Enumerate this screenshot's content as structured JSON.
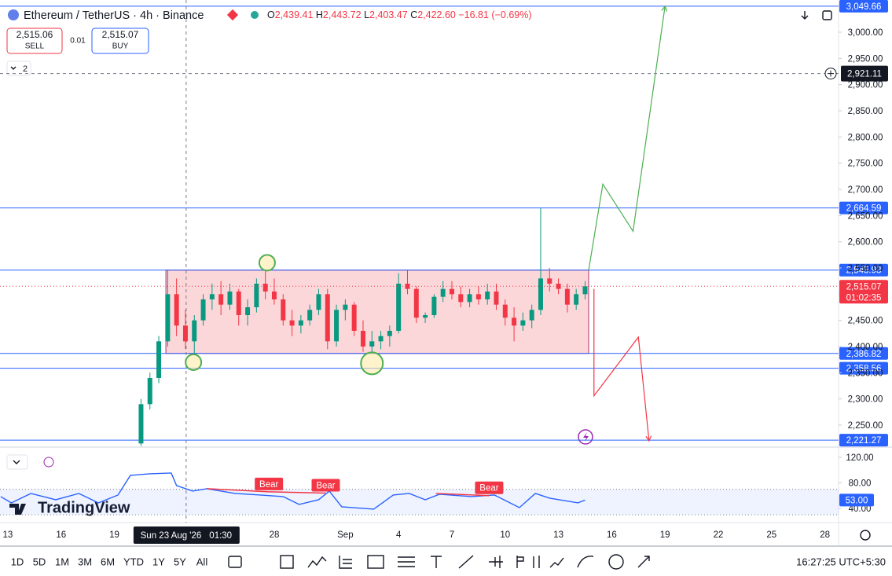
{
  "header": {
    "symbol": "Ethereum / TetherUS · 4h · Binance",
    "ohlc": [
      {
        "key": "O",
        "value": "2,439.41"
      },
      {
        "key": "H",
        "value": "2,443.72"
      },
      {
        "key": "L",
        "value": "2,403.47"
      },
      {
        "key": "C",
        "value": "2,422.60"
      }
    ],
    "change": "−16.81 (−0.69%)"
  },
  "trade": {
    "sell_price": "2,515.06",
    "sell_label": "SELL",
    "spread": "0.01",
    "buy_price": "2,515.07",
    "buy_label": "BUY"
  },
  "indicator_count": "2",
  "logo": "TradingView",
  "chart_data": {
    "type": "candlestick",
    "x": [
      7.5,
      8,
      8.5,
      9,
      9.5,
      10,
      10.5,
      11,
      11.5,
      12,
      12.5,
      13,
      13.5,
      14,
      14.5,
      15,
      15.5,
      16,
      16.5,
      17,
      17.5,
      18,
      18.5,
      19,
      19.5,
      20,
      20.5,
      21,
      21.5,
      22,
      22.5,
      23,
      23.5,
      24,
      24.5,
      25,
      25.5,
      26,
      26.5,
      27,
      27.5,
      28,
      28.5,
      29,
      29.5,
      30,
      30.5,
      31,
      31.5,
      32,
      32.5
    ],
    "open": [
      2215,
      2290,
      2340,
      2410,
      2500,
      2440,
      2410,
      2450,
      2490,
      2500,
      2480,
      2505,
      2460,
      2475,
      2520,
      2505,
      2490,
      2450,
      2440,
      2450,
      2470,
      2500,
      2410,
      2470,
      2480,
      2430,
      2400,
      2410,
      2420,
      2430,
      2520,
      2510,
      2455,
      2460,
      2495,
      2510,
      2500,
      2485,
      2500,
      2490,
      2505,
      2480,
      2455,
      2440,
      2450,
      2470,
      2530,
      2520,
      2510,
      2480,
      2500
    ],
    "high": [
      2300,
      2350,
      2420,
      2545,
      2530,
      2470,
      2460,
      2500,
      2520,
      2525,
      2520,
      2510,
      2490,
      2530,
      2545,
      2530,
      2500,
      2470,
      2460,
      2480,
      2510,
      2510,
      2480,
      2490,
      2485,
      2450,
      2430,
      2430,
      2440,
      2540,
      2545,
      2515,
      2465,
      2500,
      2525,
      2525,
      2515,
      2510,
      2515,
      2520,
      2520,
      2490,
      2475,
      2465,
      2480,
      2665,
      2550,
      2530,
      2520,
      2510,
      2525
    ],
    "low": [
      2210,
      2280,
      2330,
      2400,
      2420,
      2395,
      2387,
      2440,
      2470,
      2460,
      2470,
      2440,
      2440,
      2465,
      2490,
      2480,
      2440,
      2420,
      2425,
      2440,
      2460,
      2395,
      2400,
      2450,
      2420,
      2390,
      2387,
      2395,
      2400,
      2425,
      2500,
      2445,
      2445,
      2455,
      2485,
      2490,
      2475,
      2475,
      2480,
      2480,
      2470,
      2440,
      2410,
      2430,
      2435,
      2460,
      2505,
      2500,
      2465,
      2470,
      2490
    ],
    "close": [
      2290,
      2340,
      2410,
      2500,
      2440,
      2410,
      2450,
      2490,
      2500,
      2480,
      2505,
      2460,
      2475,
      2520,
      2505,
      2490,
      2450,
      2440,
      2450,
      2470,
      2500,
      2410,
      2470,
      2480,
      2430,
      2400,
      2410,
      2420,
      2430,
      2520,
      2510,
      2455,
      2460,
      2495,
      2510,
      2500,
      2485,
      2500,
      2490,
      2505,
      2480,
      2455,
      2440,
      2450,
      2470,
      2530,
      2520,
      2510,
      2480,
      2500,
      2515.07
    ],
    "up_color": "#089981",
    "down_color": "#f23645",
    "xlim": [
      -0.44,
      46.77
    ],
    "ylim": [
      2209.5,
      3061.5
    ],
    "xticks": [
      {
        "value": 0,
        "label": "13"
      },
      {
        "value": 3,
        "label": "16"
      },
      {
        "value": 6,
        "label": "19"
      },
      {
        "value": 15,
        "label": "28"
      },
      {
        "value": 19,
        "label": "Sep"
      },
      {
        "value": 22,
        "label": "4"
      },
      {
        "value": 25,
        "label": "7"
      },
      {
        "value": 28,
        "label": "10"
      },
      {
        "value": 31,
        "label": "13"
      },
      {
        "value": 34,
        "label": "16"
      },
      {
        "value": 37,
        "label": "19"
      },
      {
        "value": 40,
        "label": "22"
      },
      {
        "value": 43,
        "label": "25"
      },
      {
        "value": 46,
        "label": "28"
      }
    ],
    "yticks": [
      {
        "value": 2250,
        "label": "2,250.00"
      },
      {
        "value": 2300,
        "label": "2,300.00"
      },
      {
        "value": 2350,
        "label": "2,350.00"
      },
      {
        "value": 2400,
        "label": "2,400.00"
      },
      {
        "value": 2450,
        "label": "2,450.00"
      },
      {
        "value": 2500,
        "label": "2,500.00"
      },
      {
        "value": 2550,
        "label": "2,550.00"
      },
      {
        "value": 2600,
        "label": "2,600.00"
      },
      {
        "value": 2650,
        "label": "2,650.00"
      },
      {
        "value": 2700,
        "label": "2,700.00"
      },
      {
        "value": 2750,
        "label": "2,750.00"
      },
      {
        "value": 2800,
        "label": "2,800.00"
      },
      {
        "value": 2850,
        "label": "2,850.00"
      },
      {
        "value": 2900,
        "label": "2,900.00"
      },
      {
        "value": 2950,
        "label": "2,950.00"
      },
      {
        "value": 3000,
        "label": "3,000.00"
      }
    ],
    "grid": false,
    "price_lines": [
      {
        "value": 3049.66,
        "label": "3,049.66",
        "color": "#2962ff"
      },
      {
        "value": 2664.59,
        "label": "2,664.59",
        "color": "#2962ff"
      },
      {
        "value": 2545.93,
        "label": "2,545.93",
        "color": "#2962ff"
      },
      {
        "value": 2386.82,
        "label": "2,386.82",
        "color": "#2962ff"
      },
      {
        "value": 2358.56,
        "label": "2,358.56",
        "color": "#2962ff"
      },
      {
        "value": 2221.27,
        "label": "2,221.27",
        "color": "#2962ff"
      }
    ],
    "current": {
      "value": 2515.07,
      "label": "2,515.07",
      "countdown": "01:02:35",
      "color": "#f23645"
    },
    "crosshair": {
      "x": 10.04,
      "date": "Sun 23 Aug '26",
      "time": "01:30",
      "value": 2921.11,
      "label": "2,921.11"
    },
    "range_box": {
      "x": [
        8.9,
        32.7
      ],
      "y": [
        2386.82,
        2545.93
      ]
    },
    "projections": [
      {
        "color": "#4caf50",
        "x": [
          32.7,
          33.5,
          35.2,
          37.0
        ],
        "y": [
          2545.93,
          2710,
          2620,
          3049.66
        ]
      },
      {
        "color": "#f23645",
        "x": [
          33.0,
          33.0,
          35.5,
          36.1
        ],
        "y": [
          2510,
          2306,
          2418,
          2220
        ]
      }
    ],
    "markers": [
      {
        "x": 14.6,
        "y": 2560
      },
      {
        "x": 10.45,
        "y": 2370
      },
      {
        "x": 20.5,
        "y": 2368
      }
    ],
    "rsi": {
      "color": "#2962ff",
      "ylim": [
        19,
        133.5
      ],
      "yticks": [
        {
          "value": 120,
          "label": "120.00"
        },
        {
          "value": 80,
          "label": "80.00"
        },
        {
          "value": 40,
          "label": "40.00"
        }
      ],
      "band": [
        30,
        70
      ],
      "x": [
        -0.4,
        0.2,
        1.3,
        2.7,
        4.0,
        5.1,
        6.2,
        6.9,
        8.0,
        9.2,
        9.5,
        10.4,
        11.2,
        12.8,
        14.2,
        15.5,
        16.4,
        17.5,
        18.1,
        18.8,
        20.6,
        21.7,
        22.6,
        23.5,
        24.3,
        26.1,
        27.4,
        28.8,
        29.7,
        30.5,
        32.1,
        32.5
      ],
      "values": [
        58.5,
        48.6,
        63.4,
        53.5,
        63.4,
        48.6,
        60.9,
        91.7,
        94.2,
        95.4,
        75.7,
        67.1,
        70.8,
        63.4,
        60.9,
        58.5,
        46.2,
        53.5,
        67.1,
        42.5,
        38.8,
        60.9,
        63.4,
        53.5,
        62.2,
        58.5,
        60.9,
        41.2,
        63.4,
        56.0,
        48.6,
        53
      ],
      "tag": {
        "value": 53,
        "label": "53.00"
      },
      "divergences": [
        {
          "label": "Bear",
          "x": [
            11.2,
            14.7
          ],
          "y": [
            70.8,
            66
          ]
        },
        {
          "label": "Bear",
          "x": [
            14.7,
            17.9
          ],
          "y": [
            66,
            64
          ]
        },
        {
          "label": "Bear",
          "x": [
            24.1,
            27.1
          ],
          "y": [
            63.4,
            60
          ]
        }
      ]
    }
  },
  "toolbar": {
    "ranges": [
      "1D",
      "5D",
      "1M",
      "3M",
      "6M",
      "YTD",
      "1Y",
      "5Y",
      "All"
    ],
    "clock": "16:27:25 UTC+5:30"
  }
}
